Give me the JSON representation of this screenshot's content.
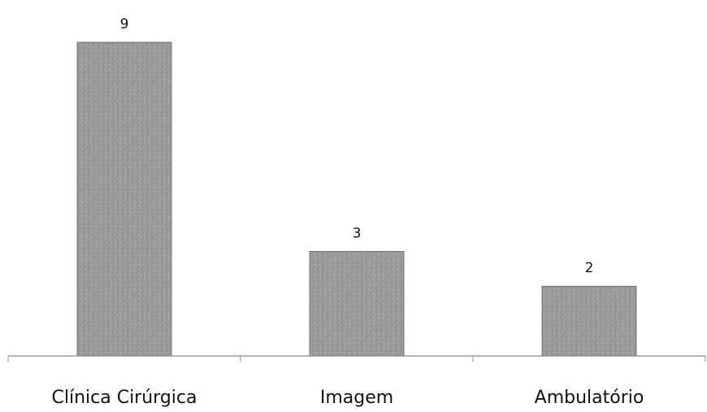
{
  "chart_data": {
    "type": "bar",
    "categories": [
      "Clínica Cirúrgica",
      "Imagem",
      "Ambulatório"
    ],
    "values": [
      9,
      3,
      2
    ],
    "data_labels": [
      "9",
      "3",
      "2"
    ],
    "ylim": [
      0,
      9
    ],
    "grid": false,
    "legend": "none",
    "colors": {
      "bar": "#9b9b9b",
      "bar_edge": "#5e5e5e",
      "axis": "#8a8a8a",
      "text": "#111111"
    }
  }
}
